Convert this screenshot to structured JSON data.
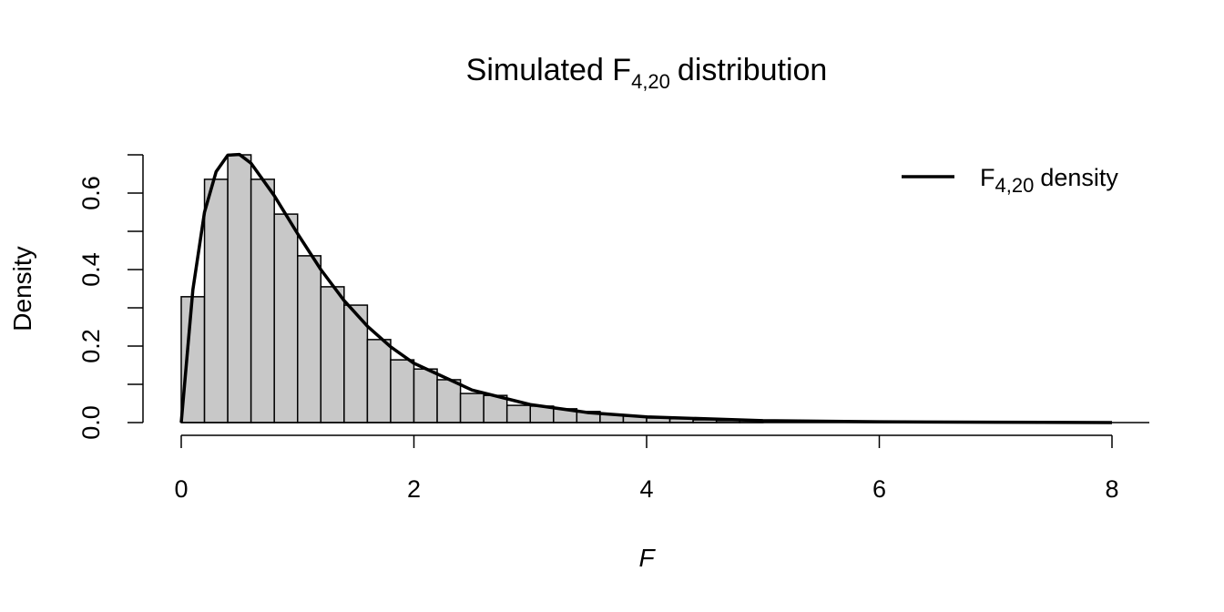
{
  "chart_data": {
    "type": "histogram",
    "title": {
      "main": "Simulated F",
      "subscript": "4,20",
      "rest": "distribution"
    },
    "xlabel": "F",
    "ylabel": "Density",
    "bins": [
      0,
      0.2,
      0.4,
      0.6,
      0.8,
      1.0,
      1.2,
      1.4,
      1.6,
      1.8,
      2.0,
      2.2,
      2.4,
      2.6,
      2.8,
      3.0,
      3.2,
      3.4,
      3.6,
      3.8,
      4.0,
      4.2,
      4.4,
      4.6,
      4.8,
      5.0
    ],
    "values": [
      0.329,
      0.636,
      0.7,
      0.636,
      0.545,
      0.436,
      0.355,
      0.307,
      0.217,
      0.164,
      0.14,
      0.112,
      0.076,
      0.071,
      0.045,
      0.043,
      0.036,
      0.029,
      0.021,
      0.017,
      0.012,
      0.01,
      0.007,
      0.005,
      0.005
    ],
    "color": "#c8c8c8",
    "density": {
      "name": "F",
      "name_subscript": "4,20",
      "name_rest": "density",
      "color": "#000000",
      "x": [
        0,
        0.1,
        0.2,
        0.3,
        0.4,
        0.5,
        0.6,
        0.8,
        1.0,
        1.2,
        1.4,
        1.6,
        1.8,
        2.0,
        2.5,
        3.0,
        3.5,
        4.0,
        5.0,
        6.0,
        7.0,
        8.0
      ],
      "values": [
        0,
        0.347,
        0.55,
        0.656,
        0.699,
        0.701,
        0.678,
        0.593,
        0.494,
        0.4,
        0.319,
        0.252,
        0.198,
        0.155,
        0.085,
        0.047,
        0.026,
        0.015,
        0.005,
        0.002,
        0.001,
        0
      ]
    },
    "xlim": [
      0,
      8
    ],
    "ylim": [
      0,
      0.7
    ],
    "xticks": [
      0,
      2,
      4,
      6,
      8
    ],
    "yticks": [
      {
        "value": 0,
        "label": "0.0"
      },
      0.2,
      0.4,
      0.6
    ],
    "yminor_ticks": [
      0.1,
      0.3,
      0.5,
      0.7
    ],
    "legend": "topright"
  }
}
